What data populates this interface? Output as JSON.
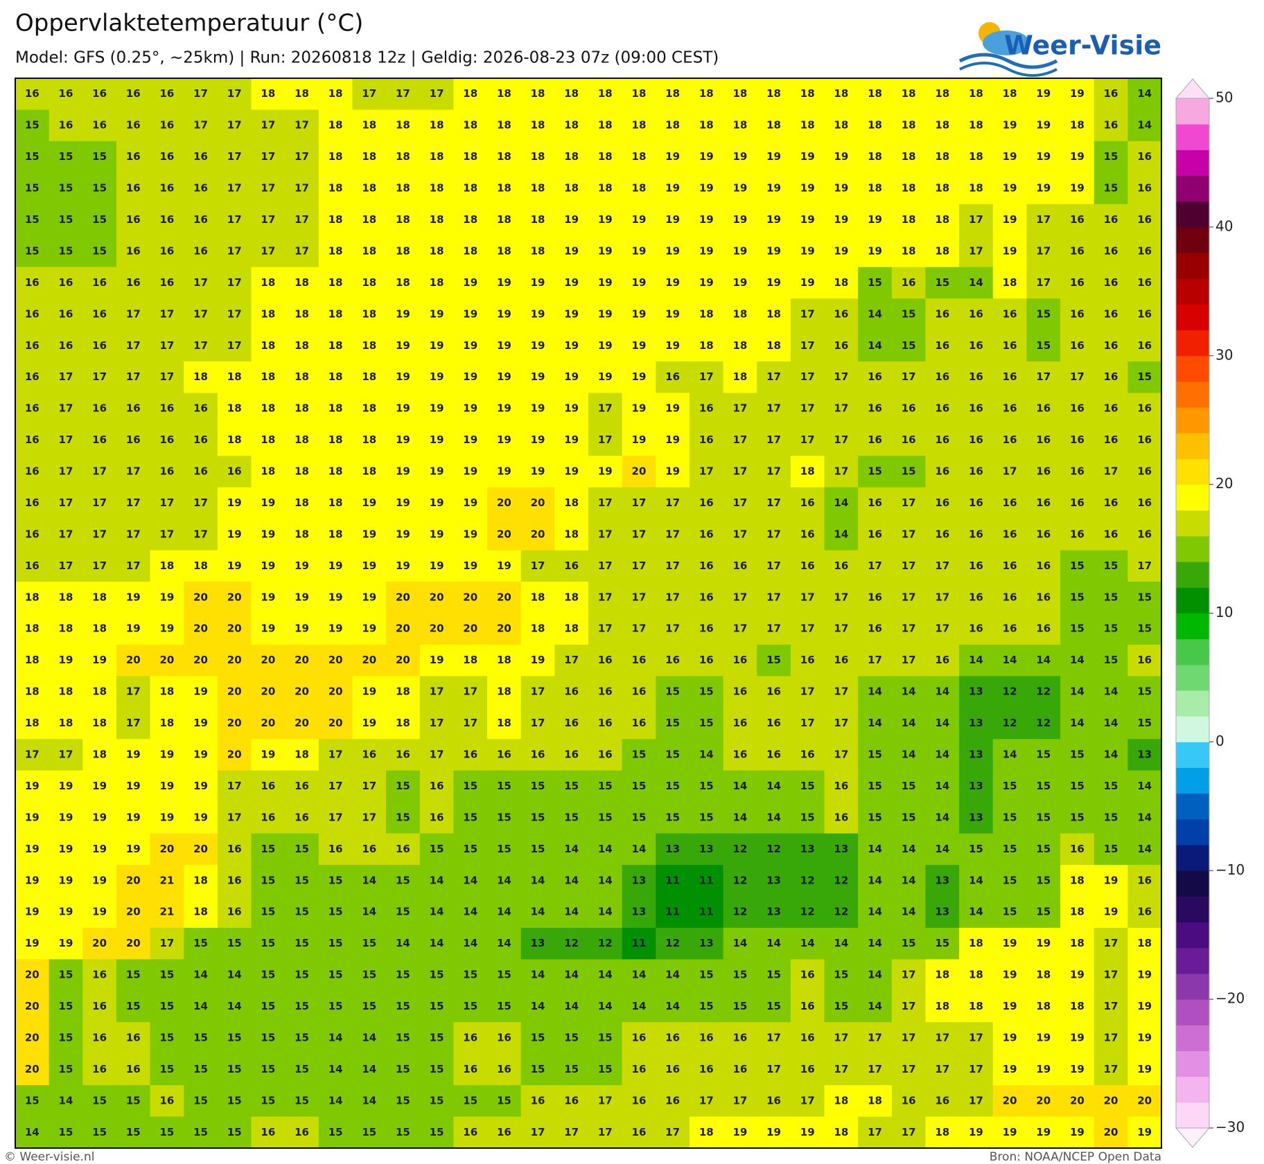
{
  "header": {
    "title": "Oppervlaktetemperatuur (°C)",
    "subtitle": "Model: GFS (0.25°, ~25km)  |  Run: 20260818 12z  |  Geldig: 2026-08-23 07z (09:00 CEST)"
  },
  "logo": "Weer-Visie",
  "map": {
    "type": "heatmap",
    "values": [
      [
        16,
        16,
        16,
        16,
        16,
        17,
        17,
        18,
        18,
        18,
        17,
        17,
        17,
        18,
        18,
        18,
        18,
        18,
        18,
        18,
        18,
        18,
        18,
        18,
        18,
        18,
        18,
        18,
        18,
        18,
        19,
        19,
        16,
        14
      ],
      [
        15,
        16,
        16,
        16,
        16,
        17,
        17,
        17,
        17,
        18,
        18,
        18,
        18,
        18,
        18,
        18,
        18,
        18,
        18,
        18,
        18,
        18,
        18,
        18,
        18,
        18,
        18,
        18,
        18,
        19,
        19,
        18,
        16,
        14
      ],
      [
        15,
        15,
        15,
        16,
        16,
        16,
        17,
        17,
        17,
        18,
        18,
        18,
        18,
        18,
        18,
        18,
        18,
        18,
        18,
        19,
        19,
        19,
        19,
        19,
        19,
        18,
        18,
        18,
        18,
        19,
        19,
        19,
        15,
        16
      ],
      [
        15,
        15,
        15,
        16,
        16,
        16,
        17,
        17,
        17,
        18,
        18,
        18,
        18,
        18,
        18,
        18,
        18,
        18,
        18,
        19,
        19,
        19,
        19,
        19,
        19,
        18,
        18,
        18,
        18,
        19,
        19,
        19,
        15,
        16
      ],
      [
        15,
        15,
        15,
        16,
        16,
        16,
        17,
        17,
        17,
        18,
        18,
        18,
        18,
        18,
        18,
        18,
        19,
        19,
        19,
        19,
        19,
        19,
        19,
        19,
        19,
        19,
        18,
        18,
        17,
        19,
        17,
        16,
        16,
        16
      ],
      [
        15,
        15,
        15,
        16,
        16,
        16,
        17,
        17,
        17,
        18,
        18,
        18,
        18,
        18,
        18,
        18,
        19,
        19,
        19,
        19,
        19,
        19,
        19,
        19,
        19,
        19,
        18,
        18,
        17,
        19,
        17,
        16,
        16,
        16
      ],
      [
        16,
        16,
        16,
        16,
        16,
        17,
        17,
        18,
        18,
        18,
        18,
        18,
        18,
        19,
        19,
        19,
        19,
        19,
        19,
        19,
        19,
        19,
        19,
        19,
        18,
        15,
        16,
        15,
        14,
        18,
        17,
        16,
        16,
        16
      ],
      [
        16,
        16,
        16,
        17,
        17,
        17,
        17,
        18,
        18,
        18,
        18,
        19,
        19,
        19,
        19,
        19,
        19,
        19,
        19,
        19,
        18,
        18,
        18,
        17,
        16,
        14,
        15,
        16,
        16,
        16,
        15,
        16,
        16,
        16
      ],
      [
        16,
        16,
        16,
        17,
        17,
        17,
        17,
        18,
        18,
        18,
        18,
        19,
        19,
        19,
        19,
        19,
        19,
        19,
        19,
        19,
        18,
        18,
        18,
        17,
        16,
        14,
        15,
        16,
        16,
        16,
        15,
        16,
        16,
        16
      ],
      [
        16,
        17,
        17,
        17,
        17,
        18,
        18,
        18,
        18,
        18,
        18,
        19,
        19,
        19,
        19,
        19,
        19,
        19,
        19,
        16,
        17,
        18,
        17,
        17,
        17,
        16,
        17,
        16,
        16,
        16,
        17,
        17,
        16,
        15
      ],
      [
        16,
        17,
        16,
        16,
        16,
        16,
        18,
        18,
        18,
        18,
        18,
        19,
        19,
        19,
        19,
        19,
        19,
        17,
        19,
        19,
        16,
        17,
        17,
        17,
        17,
        16,
        16,
        16,
        16,
        16,
        16,
        16,
        16,
        16
      ],
      [
        16,
        17,
        16,
        16,
        16,
        16,
        18,
        18,
        18,
        18,
        18,
        19,
        19,
        19,
        19,
        19,
        19,
        17,
        19,
        19,
        16,
        17,
        17,
        17,
        17,
        16,
        16,
        16,
        16,
        16,
        16,
        16,
        16,
        16
      ],
      [
        16,
        17,
        17,
        17,
        16,
        16,
        16,
        18,
        18,
        18,
        18,
        19,
        19,
        19,
        19,
        19,
        19,
        19,
        20,
        19,
        17,
        17,
        17,
        18,
        17,
        15,
        15,
        16,
        16,
        17,
        16,
        16,
        17,
        16
      ],
      [
        16,
        17,
        17,
        17,
        17,
        17,
        19,
        19,
        18,
        18,
        19,
        19,
        19,
        19,
        20,
        20,
        18,
        17,
        17,
        17,
        16,
        17,
        17,
        16,
        14,
        16,
        17,
        16,
        16,
        16,
        16,
        16,
        16,
        16
      ],
      [
        16,
        17,
        17,
        17,
        17,
        17,
        19,
        19,
        18,
        18,
        19,
        19,
        19,
        19,
        20,
        20,
        18,
        17,
        17,
        17,
        16,
        17,
        17,
        16,
        14,
        16,
        17,
        16,
        16,
        16,
        16,
        16,
        16,
        16
      ],
      [
        16,
        17,
        17,
        17,
        18,
        18,
        19,
        19,
        19,
        19,
        19,
        19,
        19,
        19,
        19,
        17,
        16,
        17,
        17,
        17,
        16,
        16,
        17,
        16,
        16,
        17,
        17,
        17,
        16,
        16,
        16,
        15,
        15,
        17
      ],
      [
        18,
        18,
        18,
        19,
        19,
        20,
        20,
        19,
        19,
        19,
        19,
        20,
        20,
        20,
        20,
        18,
        18,
        17,
        17,
        17,
        16,
        17,
        17,
        17,
        17,
        16,
        17,
        17,
        16,
        16,
        16,
        15,
        15,
        15
      ],
      [
        18,
        18,
        18,
        19,
        19,
        20,
        20,
        19,
        19,
        19,
        19,
        20,
        20,
        20,
        20,
        18,
        18,
        17,
        17,
        17,
        16,
        17,
        17,
        17,
        17,
        16,
        17,
        17,
        16,
        16,
        16,
        15,
        15,
        15
      ],
      [
        18,
        19,
        19,
        20,
        20,
        20,
        20,
        20,
        20,
        20,
        20,
        20,
        19,
        18,
        18,
        19,
        17,
        16,
        16,
        16,
        16,
        16,
        15,
        16,
        16,
        17,
        17,
        16,
        14,
        14,
        14,
        14,
        15,
        16
      ],
      [
        18,
        18,
        18,
        17,
        18,
        19,
        20,
        20,
        20,
        20,
        19,
        18,
        17,
        17,
        18,
        17,
        16,
        16,
        16,
        15,
        15,
        16,
        16,
        17,
        17,
        14,
        14,
        14,
        13,
        12,
        12,
        14,
        14,
        15
      ],
      [
        18,
        18,
        18,
        17,
        18,
        19,
        20,
        20,
        20,
        20,
        19,
        18,
        17,
        17,
        18,
        17,
        16,
        16,
        16,
        15,
        15,
        16,
        16,
        17,
        17,
        14,
        14,
        14,
        13,
        12,
        12,
        14,
        14,
        15
      ],
      [
        17,
        17,
        18,
        19,
        19,
        19,
        20,
        19,
        18,
        17,
        16,
        16,
        17,
        16,
        16,
        16,
        16,
        16,
        15,
        15,
        14,
        16,
        16,
        16,
        17,
        15,
        14,
        14,
        13,
        14,
        15,
        15,
        14,
        13
      ],
      [
        19,
        19,
        19,
        19,
        19,
        19,
        17,
        16,
        16,
        17,
        17,
        15,
        16,
        15,
        15,
        15,
        15,
        15,
        15,
        15,
        15,
        14,
        14,
        15,
        16,
        15,
        15,
        14,
        13,
        15,
        15,
        15,
        15,
        14
      ],
      [
        19,
        19,
        19,
        19,
        19,
        19,
        17,
        16,
        16,
        17,
        17,
        15,
        16,
        15,
        15,
        15,
        15,
        15,
        15,
        15,
        15,
        14,
        14,
        15,
        16,
        15,
        15,
        14,
        13,
        15,
        15,
        15,
        15,
        14
      ],
      [
        19,
        19,
        19,
        19,
        20,
        20,
        16,
        15,
        15,
        16,
        16,
        16,
        15,
        15,
        15,
        15,
        14,
        14,
        14,
        13,
        13,
        12,
        12,
        13,
        13,
        14,
        14,
        14,
        15,
        15,
        15,
        16,
        15,
        14
      ],
      [
        19,
        19,
        19,
        20,
        21,
        18,
        16,
        15,
        15,
        15,
        14,
        15,
        14,
        14,
        14,
        14,
        14,
        14,
        13,
        11,
        11,
        12,
        13,
        12,
        12,
        14,
        14,
        13,
        14,
        15,
        15,
        18,
        19,
        16
      ],
      [
        19,
        19,
        19,
        20,
        21,
        18,
        16,
        15,
        15,
        15,
        14,
        15,
        14,
        14,
        14,
        14,
        14,
        14,
        13,
        11,
        11,
        12,
        13,
        12,
        12,
        14,
        14,
        13,
        14,
        15,
        15,
        18,
        19,
        16
      ],
      [
        19,
        19,
        20,
        20,
        17,
        15,
        15,
        15,
        15,
        15,
        15,
        14,
        14,
        14,
        14,
        13,
        12,
        12,
        11,
        12,
        13,
        14,
        14,
        14,
        14,
        14,
        15,
        15,
        18,
        19,
        19,
        18,
        17,
        18
      ],
      [
        20,
        15,
        16,
        15,
        15,
        14,
        14,
        15,
        15,
        15,
        15,
        15,
        15,
        15,
        15,
        14,
        14,
        14,
        14,
        14,
        15,
        15,
        15,
        16,
        15,
        14,
        17,
        18,
        18,
        19,
        18,
        19,
        17,
        19
      ],
      [
        20,
        15,
        16,
        15,
        15,
        14,
        14,
        15,
        15,
        15,
        15,
        15,
        15,
        15,
        15,
        14,
        14,
        14,
        14,
        14,
        15,
        15,
        15,
        16,
        15,
        14,
        17,
        18,
        18,
        19,
        18,
        18,
        17,
        19
      ],
      [
        20,
        15,
        16,
        16,
        15,
        15,
        15,
        15,
        15,
        14,
        14,
        15,
        15,
        16,
        16,
        15,
        15,
        15,
        16,
        16,
        16,
        16,
        17,
        16,
        17,
        17,
        17,
        17,
        17,
        19,
        19,
        19,
        17,
        19
      ],
      [
        20,
        15,
        16,
        16,
        15,
        15,
        15,
        15,
        15,
        14,
        14,
        15,
        15,
        16,
        16,
        15,
        15,
        15,
        16,
        16,
        16,
        16,
        17,
        16,
        17,
        17,
        17,
        17,
        17,
        19,
        19,
        19,
        17,
        19
      ],
      [
        15,
        14,
        15,
        15,
        16,
        15,
        15,
        15,
        15,
        14,
        14,
        15,
        15,
        15,
        15,
        16,
        16,
        17,
        16,
        16,
        17,
        17,
        16,
        17,
        18,
        18,
        16,
        16,
        17,
        20,
        20,
        20,
        20,
        20
      ],
      [
        14,
        15,
        15,
        15,
        15,
        15,
        15,
        16,
        16,
        15,
        15,
        15,
        15,
        16,
        16,
        17,
        17,
        17,
        16,
        17,
        18,
        19,
        19,
        19,
        18,
        17,
        17,
        18,
        19,
        19,
        19,
        19,
        20,
        19
      ]
    ]
  },
  "colorbar": {
    "lim": [
      -30,
      50
    ],
    "ticks": [
      {
        "value": -30,
        "label": "−30"
      },
      {
        "value": -20,
        "label": "−20"
      },
      {
        "value": -10,
        "label": "−10"
      },
      0,
      10,
      20,
      30,
      40,
      50
    ],
    "colors": [
      "#fcd8f6",
      "#f4b4f0",
      "#e290e4",
      "#cc6ed4",
      "#b050c0",
      "#8a38ac",
      "#6a1c98",
      "#4a0c80",
      "#2a0a60",
      "#140a48",
      "#0a1a7a",
      "#0040a8",
      "#0060c0",
      "#00a0e8",
      "#38c8f8",
      "#d0f8e0",
      "#a8eca8",
      "#70d870",
      "#48c848",
      "#00b800",
      "#009000",
      "#38a808",
      "#80c800",
      "#c8dc00",
      "#ffff00",
      "#ffe000",
      "#ffc000",
      "#ff9800",
      "#ff7000",
      "#ff4c00",
      "#f02000",
      "#d80000",
      "#b80000",
      "#980000",
      "#700010",
      "#500030",
      "#900070",
      "#c800a8",
      "#f048d0",
      "#f8a8e0"
    ],
    "under_color": "#fdf0fb",
    "over_color": "#fde0f6"
  },
  "footer": {
    "credit": "© Weer-visie.nl",
    "source": "Bron: NOAA/NCEP Open Data"
  }
}
